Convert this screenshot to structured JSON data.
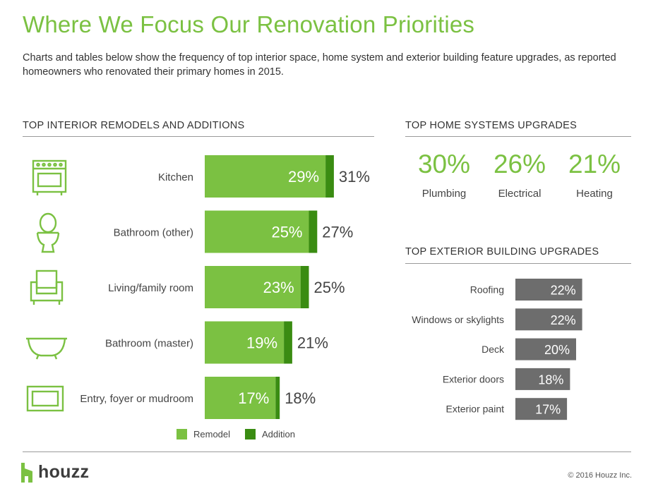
{
  "title": "Where We Focus Our Renovation Priorities",
  "subtitle": "Charts and tables below show the frequency of top interior space, home system and exterior building feature upgrades, as reported homeowners who renovated their primary homes in 2015.",
  "colors": {
    "remodel": "#7bc142",
    "addition": "#3a8c12",
    "exterior": "#6d6d6d",
    "accent": "#7bc142"
  },
  "chart_data": [
    {
      "type": "bar",
      "title": "TOP INTERIOR REMODELS AND ADDITIONS",
      "orientation": "horizontal",
      "stacked": true,
      "categories": [
        "Kitchen",
        "Bathroom (other)",
        "Living/family room",
        "Bathroom (master)",
        "Entry, foyer or mudroom"
      ],
      "icons": [
        "stove-icon",
        "toilet-icon",
        "armchair-icon",
        "bathtub-icon",
        "doormat-icon"
      ],
      "series": [
        {
          "name": "Remodel",
          "values": [
            29,
            25,
            23,
            19,
            17
          ],
          "labels": [
            "29%",
            "25%",
            "23%",
            "19%",
            "17%"
          ]
        },
        {
          "name": "Addition",
          "values": [
            2,
            2,
            2,
            2,
            1
          ]
        }
      ],
      "totals": [
        "31%",
        "27%",
        "25%",
        "21%",
        "18%"
      ],
      "legend": "bottom"
    },
    {
      "type": "table",
      "title": "TOP HOME SYSTEMS UPGRADES",
      "categories": [
        "Plumbing",
        "Electrical",
        "Heating"
      ],
      "values": [
        30,
        26,
        21
      ],
      "labels": [
        "30%",
        "26%",
        "21%"
      ]
    },
    {
      "type": "bar",
      "title": "TOP EXTERIOR BUILDING UPGRADES",
      "orientation": "horizontal",
      "categories": [
        "Roofing",
        "Windows or skylights",
        "Deck",
        "Exterior doors",
        "Exterior paint"
      ],
      "values": [
        22,
        22,
        20,
        18,
        17
      ],
      "labels": [
        "22%",
        "22%",
        "20%",
        "18%",
        "17%"
      ]
    }
  ],
  "logo": {
    "text": "houzz"
  },
  "copyright": "© 2016 Houzz Inc."
}
